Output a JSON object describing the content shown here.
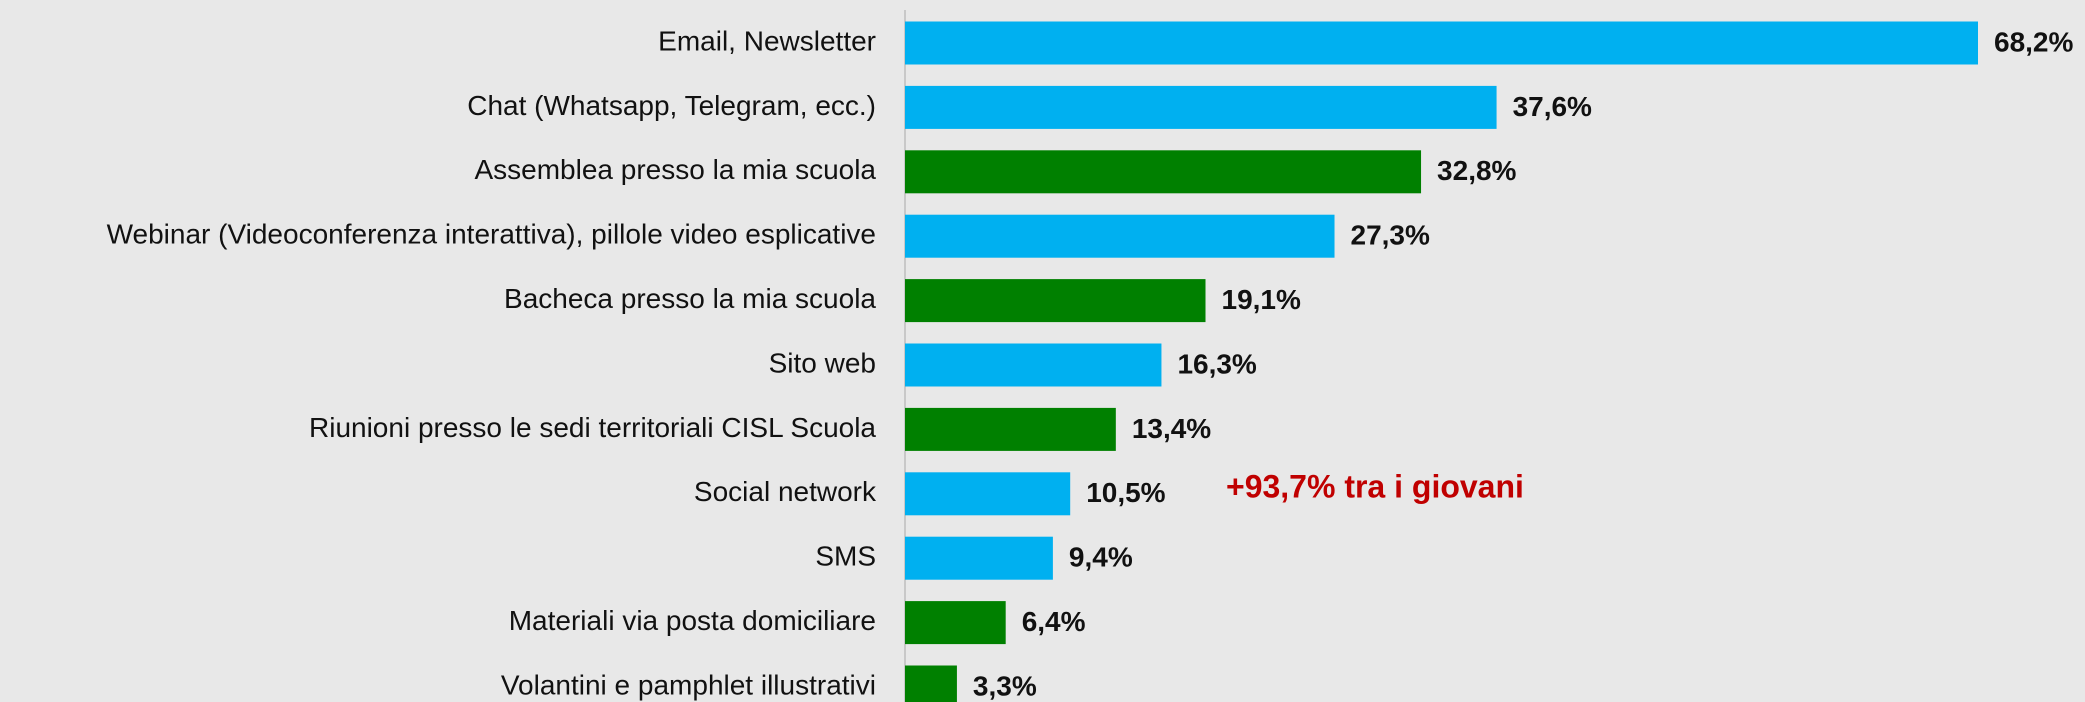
{
  "chart_data": {
    "type": "bar",
    "orientation": "horizontal",
    "categories": [
      "Email, Newsletter",
      "Chat (Whatsapp, Telegram, ecc.)",
      "Assemblea presso la mia scuola",
      "Webinar (Videoconferenza interattiva), pillole video esplicative",
      "Bacheca presso la mia scuola",
      "Sito web",
      "Riunioni presso le sedi territoriali CISL Scuola",
      "Social network",
      "SMS",
      "Materiali via posta domiciliare",
      "Volantini e pamphlet illustrativi"
    ],
    "values": [
      68.2,
      37.6,
      32.8,
      27.3,
      19.1,
      16.3,
      13.4,
      10.5,
      9.4,
      6.4,
      3.3
    ],
    "value_labels": [
      "68,2%",
      "37,6%",
      "32,8%",
      "27,3%",
      "19,1%",
      "16,3%",
      "13,4%",
      "10,5%",
      "9,4%",
      "6,4%",
      "3,3%"
    ],
    "colors": [
      "#00b0f0",
      "#00b0f0",
      "#008000",
      "#00b0f0",
      "#008000",
      "#00b0f0",
      "#008000",
      "#00b0f0",
      "#00b0f0",
      "#008000",
      "#008000"
    ],
    "annotations": [
      {
        "text": "+93,7% tra i giovani"
      }
    ]
  }
}
